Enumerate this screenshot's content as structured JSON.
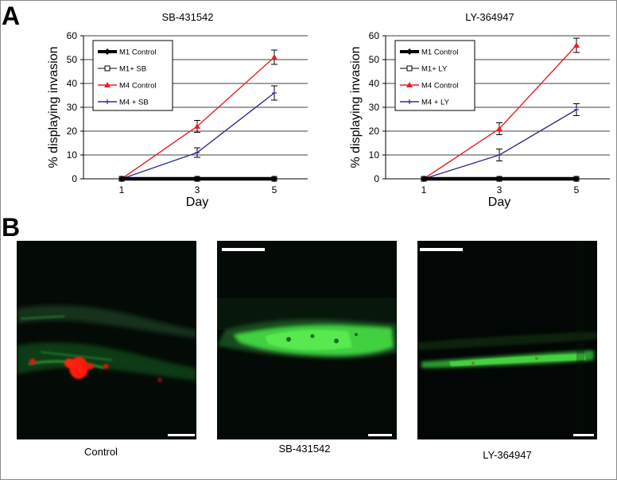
{
  "panels": {
    "a_label": "A",
    "b_label": "B"
  },
  "chart_data": [
    {
      "type": "line",
      "title": "SB-431542",
      "xlabel": "Day",
      "ylabel": "% displaying invasion",
      "x": [
        1,
        3,
        5
      ],
      "ylim": [
        0,
        60
      ],
      "yticks": [
        0,
        10,
        20,
        30,
        40,
        50,
        60
      ],
      "grid": true,
      "legend_position": "top-left",
      "series": [
        {
          "name": "M1 Control",
          "values": [
            0,
            0,
            0
          ],
          "errors": [
            0,
            0,
            0
          ],
          "color": "#000000",
          "marker": "diamond",
          "style": "thick"
        },
        {
          "name": "M1+ SB",
          "values": [
            0,
            0,
            0
          ],
          "errors": [
            0,
            0,
            0
          ],
          "color": "#000000",
          "marker": "open-square",
          "style": "thin"
        },
        {
          "name": "M4 Control",
          "values": [
            0,
            22,
            51
          ],
          "errors": [
            0,
            2.5,
            3
          ],
          "color": "#e8202a",
          "marker": "triangle",
          "style": "normal"
        },
        {
          "name": "M4 + SB",
          "values": [
            0,
            11,
            36
          ],
          "errors": [
            0,
            2,
            3
          ],
          "color": "#2b2f8f",
          "marker": "plus",
          "style": "normal"
        }
      ]
    },
    {
      "type": "line",
      "title": "LY-364947",
      "xlabel": "Day",
      "ylabel": "% displaying invasion",
      "x": [
        1,
        3,
        5
      ],
      "ylim": [
        0,
        60
      ],
      "yticks": [
        0,
        10,
        20,
        30,
        40,
        50,
        60
      ],
      "grid": true,
      "legend_position": "top-left",
      "series": [
        {
          "name": "M1 Control",
          "values": [
            0,
            0,
            0
          ],
          "errors": [
            0,
            0,
            0
          ],
          "color": "#000000",
          "marker": "diamond",
          "style": "thick"
        },
        {
          "name": "M1+ LY",
          "values": [
            0,
            0,
            0
          ],
          "errors": [
            0,
            0,
            0
          ],
          "color": "#000000",
          "marker": "open-square",
          "style": "thin"
        },
        {
          "name": "M4 Control",
          "values": [
            0,
            21,
            56
          ],
          "errors": [
            0,
            2.5,
            3
          ],
          "color": "#e8202a",
          "marker": "triangle",
          "style": "normal"
        },
        {
          "name": "M4 + LY",
          "values": [
            0,
            10,
            29
          ],
          "errors": [
            0,
            2.5,
            2.5
          ],
          "color": "#2b2f8f",
          "marker": "plus",
          "style": "normal"
        }
      ]
    }
  ],
  "micrographs": [
    {
      "caption": "Control"
    },
    {
      "caption": "SB-431542"
    },
    {
      "caption": "LY-364947"
    }
  ],
  "colors": {
    "fluorescence_green": "#3bd23b",
    "fluorescence_red": "#ff1a0a",
    "background_dark": "#040a05"
  }
}
